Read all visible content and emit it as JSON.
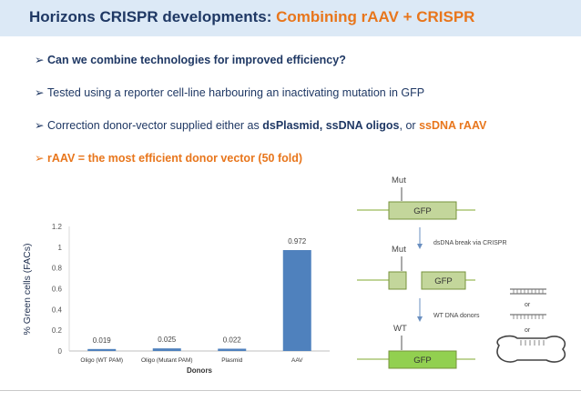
{
  "header": {
    "title_main": "Horizons CRISPR developments:",
    "title_accent": "Combining rAAV + CRISPR"
  },
  "bullets": {
    "b1": "Can we combine technologies for improved efficiency?",
    "b2": "Tested using a reporter cell-line harbouring an inactivating mutation in GFP",
    "b3_pre": "Correction donor-vector supplied either as ",
    "b3_bold": "dsPlasmid, ssDNA oligos",
    "b3_mid": ", or ",
    "b3_hl": "ssDNA rAAV",
    "b4": "rAAV = the most efficient donor vector (50 fold)",
    "arrow_glyph": "➢"
  },
  "chart_data": {
    "type": "bar",
    "categories": [
      "Oligo (WT PAM)",
      "Oligo (Mutant PAM)",
      "Plasmid",
      "AAV"
    ],
    "values": [
      0.019,
      0.025,
      0.022,
      0.972
    ],
    "value_labels": [
      "0.019",
      "0.025",
      "0.022",
      "0.972"
    ],
    "ylabel": "% Green cells (FACs)",
    "xlabel": "Donors",
    "ylim": [
      0,
      1.2
    ],
    "yticks": [
      0,
      0.2,
      0.4,
      0.6,
      0.8,
      1,
      1.2
    ],
    "ytick_labels": [
      "0",
      "0.2",
      "0.4",
      "0.6",
      "0.8",
      "1",
      "1.2"
    ],
    "bar_color": "#4f81bd"
  },
  "diagram": {
    "mut_label_1": "Mut",
    "gfp_label_1": "GFP",
    "mut_label_2": "Mut",
    "gfp_label_2": "GFP",
    "break_text": "dsDNA break via CRISPR",
    "wt_label": "WT",
    "gfp_label_3": "GFP",
    "donors_text": "WT DNA donors",
    "or_1": "or",
    "or_2": "or",
    "gfp_light": "#c3d69b",
    "gfp_bright": "#92d050"
  }
}
